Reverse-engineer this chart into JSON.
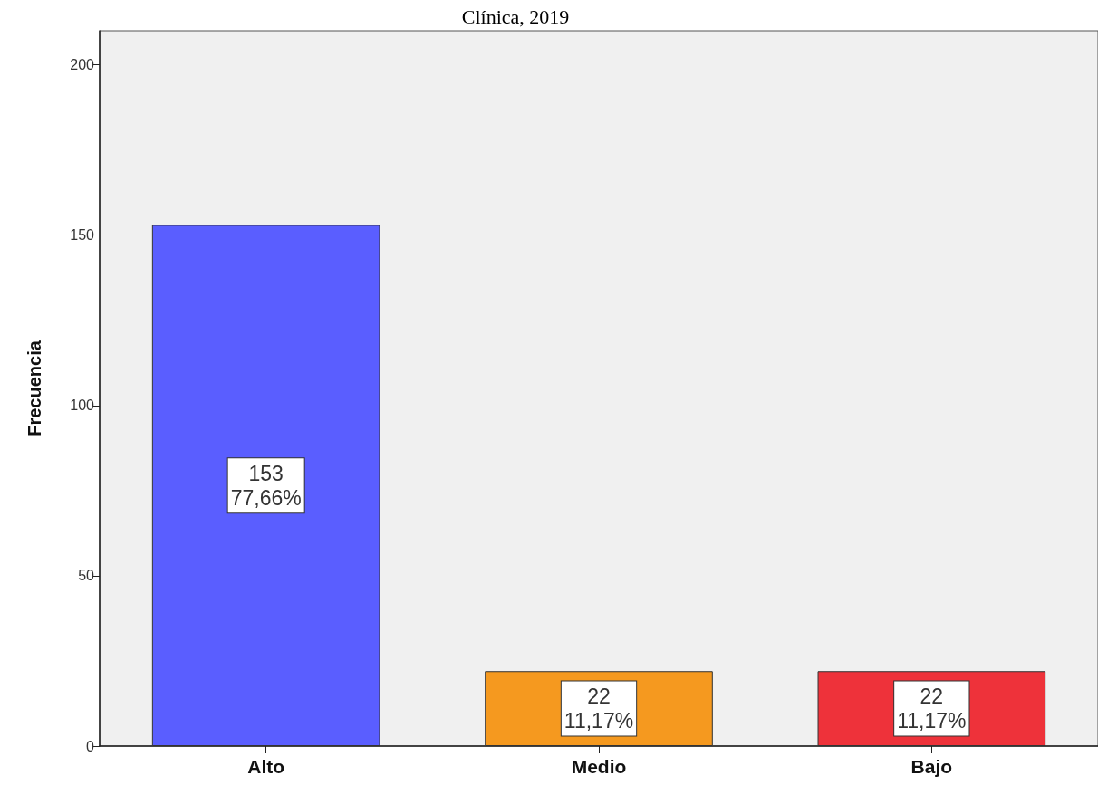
{
  "chart_data": {
    "type": "bar",
    "title": "Clínica, 2019",
    "ylabel": "Frecuencia",
    "categories": [
      "Alto",
      "Medio",
      "Bajo"
    ],
    "values": [
      153,
      22,
      22
    ],
    "colors": [
      "#5a5eff",
      "#f5991f",
      "#ee323a"
    ],
    "ylim": [
      0,
      210
    ],
    "yticks": [
      0,
      50,
      100,
      150,
      200
    ],
    "value_labels": [
      "153\n77,66%",
      "22\n11,17%",
      "22\n11,17%"
    ]
  }
}
